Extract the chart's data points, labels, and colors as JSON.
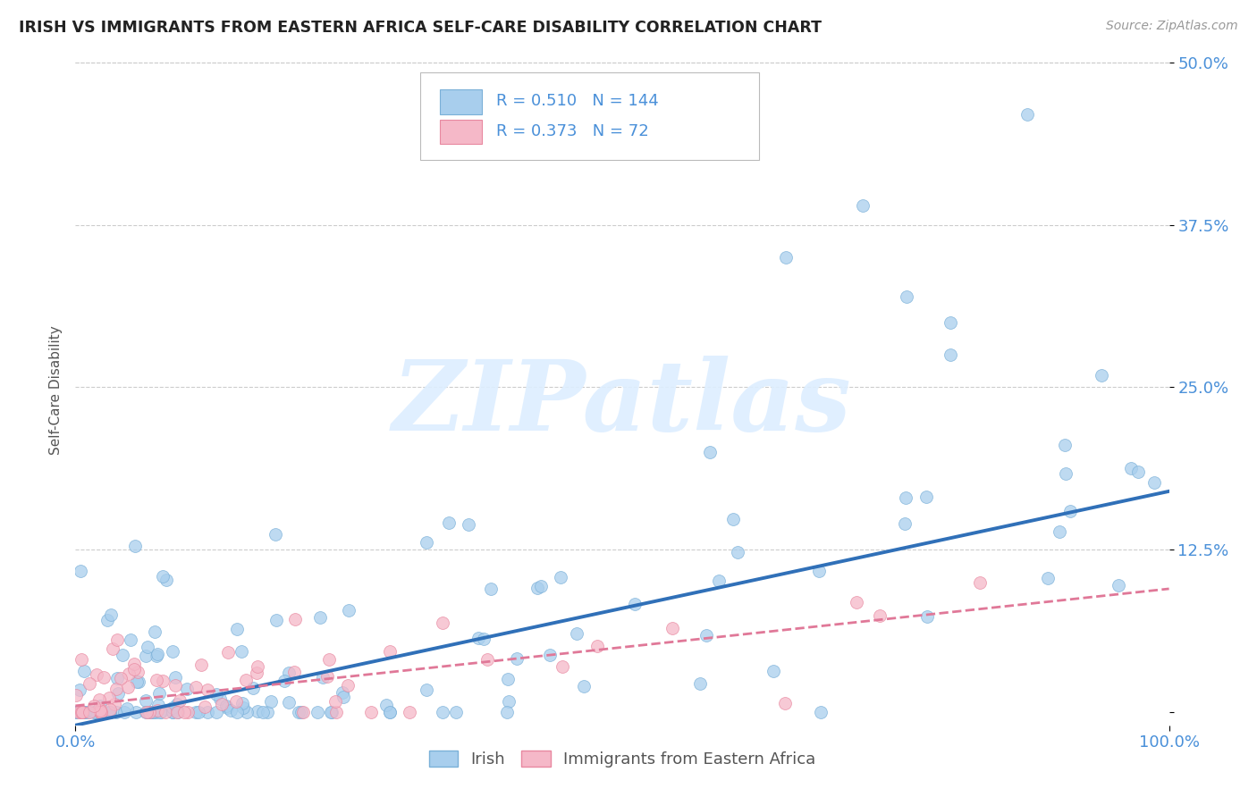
{
  "title": "IRISH VS IMMIGRANTS FROM EASTERN AFRICA SELF-CARE DISABILITY CORRELATION CHART",
  "source_text": "Source: ZipAtlas.com",
  "ylabel": "Self-Care Disability",
  "watermark": "ZIPatlas",
  "xlim": [
    0.0,
    1.0
  ],
  "ylim": [
    -0.01,
    0.505
  ],
  "yticks": [
    0.0,
    0.125,
    0.25,
    0.375,
    0.5
  ],
  "ytick_labels": [
    "",
    "12.5%",
    "25.0%",
    "37.5%",
    "50.0%"
  ],
  "xtick_labels": [
    "0.0%",
    "100.0%"
  ],
  "irish_color": "#A8CEED",
  "irish_edge_color": "#7AB0D8",
  "eastern_color": "#F5B8C8",
  "eastern_edge_color": "#E888A0",
  "irish_line_color": "#3070B8",
  "eastern_line_color": "#E07898",
  "legend_R_irish": "0.510",
  "legend_N_irish": "144",
  "legend_R_eastern": "0.373",
  "legend_N_eastern": "72",
  "legend_label_irish": "Irish",
  "legend_label_eastern": "Immigrants from Eastern Africa",
  "background_color": "#FFFFFF",
  "grid_color": "#CCCCCC",
  "title_color": "#222222",
  "axis_label_color": "#555555",
  "tick_label_color": "#4A90D9",
  "irish_line_slope": 0.18,
  "irish_line_intercept": -0.01,
  "eastern_line_slope": 0.09,
  "eastern_line_intercept": 0.005
}
